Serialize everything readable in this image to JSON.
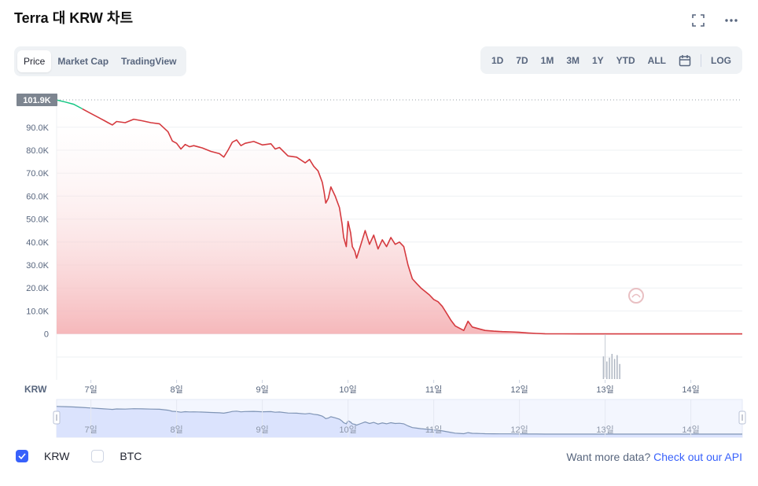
{
  "title": "Terra 대 KRW 차트",
  "tabs": [
    {
      "label": "Price",
      "active": true
    },
    {
      "label": "Market Cap",
      "active": false
    },
    {
      "label": "TradingView",
      "active": false
    }
  ],
  "ranges": [
    "1D",
    "7D",
    "1M",
    "3M",
    "1Y",
    "YTD",
    "ALL"
  ],
  "log_label": "LOG",
  "legend": {
    "krw": "KRW",
    "btc": "BTC"
  },
  "more_text": "Want more data?",
  "more_link": "Check out our API",
  "colors": {
    "line": "#d53a3f",
    "fill": "#f6b9bc",
    "accent": "#3861fb",
    "up": "#16c784",
    "nav_fill": "#dbe3fd",
    "nav_line": "#7f94b5"
  },
  "chart_data": {
    "type": "area",
    "currency_label": "KRW",
    "ylim": [
      -20000,
      105000
    ],
    "yticks": [
      "90.0K",
      "80.0K",
      "70.0K",
      "60.0K",
      "50.0K",
      "40.0K",
      "30.0K",
      "20.0K",
      "10.0K",
      "0"
    ],
    "ytick_values": [
      90000,
      80000,
      70000,
      60000,
      50000,
      40000,
      30000,
      20000,
      10000,
      0
    ],
    "current_label": "101.9K",
    "current_value": 101900,
    "xlim": [
      6.6,
      14.6
    ],
    "xticks": [
      "7일",
      "8일",
      "9일",
      "10일",
      "11일",
      "12일",
      "13일",
      "14일"
    ],
    "xtick_values": [
      7,
      8,
      9,
      10,
      11,
      12,
      13,
      14
    ],
    "x": [
      6.6,
      6.7,
      6.8,
      6.9,
      7.0,
      7.1,
      7.15,
      7.2,
      7.25,
      7.3,
      7.4,
      7.5,
      7.6,
      7.7,
      7.8,
      7.9,
      7.95,
      8.0,
      8.05,
      8.1,
      8.15,
      8.2,
      8.3,
      8.4,
      8.5,
      8.55,
      8.6,
      8.65,
      8.7,
      8.75,
      8.8,
      8.9,
      9.0,
      9.1,
      9.15,
      9.2,
      9.3,
      9.4,
      9.5,
      9.55,
      9.6,
      9.65,
      9.7,
      9.72,
      9.74,
      9.77,
      9.8,
      9.85,
      9.9,
      9.93,
      9.95,
      9.98,
      10.0,
      10.03,
      10.05,
      10.08,
      10.1,
      10.15,
      10.2,
      10.25,
      10.3,
      10.35,
      10.4,
      10.45,
      10.5,
      10.55,
      10.6,
      10.65,
      10.7,
      10.75,
      10.8,
      10.85,
      10.9,
      10.95,
      11.0,
      11.05,
      11.1,
      11.15,
      11.2,
      11.25,
      11.3,
      11.35,
      11.4,
      11.45,
      11.5,
      11.55,
      11.6,
      11.7,
      11.8,
      11.9,
      12.0,
      12.1,
      12.2,
      12.3,
      12.4,
      12.5,
      12.7,
      13.0,
      13.5,
      14.0,
      14.6
    ],
    "y": [
      101900,
      101000,
      100000,
      98000,
      96000,
      94000,
      93000,
      92000,
      91000,
      92500,
      92000,
      93500,
      92800,
      92000,
      91500,
      88000,
      84000,
      83000,
      80500,
      82500,
      81500,
      82000,
      81000,
      79500,
      78500,
      77000,
      80000,
      83500,
      84500,
      82000,
      83000,
      83800,
      82300,
      82800,
      80500,
      81200,
      77500,
      77000,
      74500,
      76000,
      73000,
      71000,
      66000,
      62000,
      57000,
      59000,
      64000,
      60000,
      55000,
      48000,
      42000,
      38000,
      49000,
      44000,
      38000,
      36000,
      33000,
      39000,
      45000,
      39000,
      43000,
      37000,
      41000,
      38000,
      42000,
      39000,
      40000,
      38000,
      30000,
      24000,
      22000,
      20000,
      18500,
      17000,
      15000,
      14000,
      12000,
      9000,
      6000,
      3500,
      2500,
      1500,
      5500,
      3000,
      2500,
      2000,
      1500,
      1200,
      1000,
      900,
      700,
      400,
      200,
      80,
      40,
      20,
      10,
      8,
      5,
      5,
      5
    ]
  }
}
